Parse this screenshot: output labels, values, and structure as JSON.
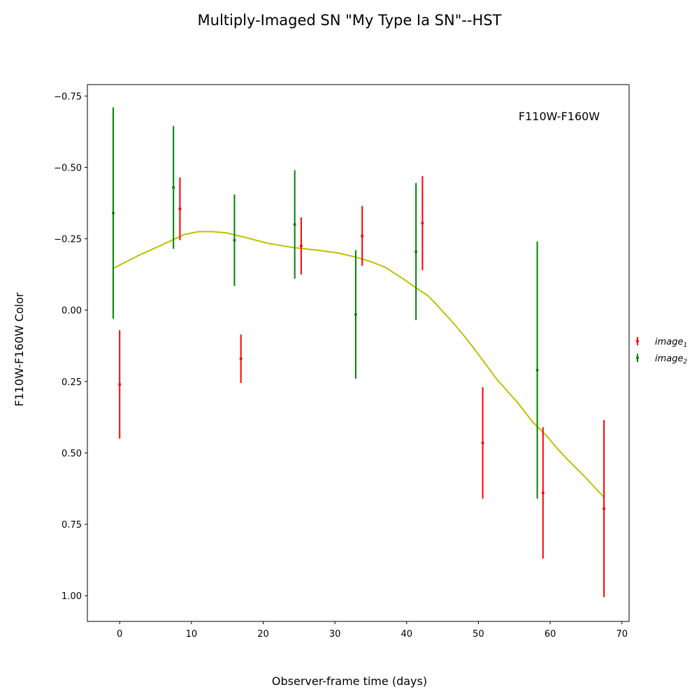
{
  "chart_data": {
    "type": "scatter",
    "title": "Multiply-Imaged SN \"My Type Ia SN\"--HST",
    "xlabel": "Observer-frame time (days)",
    "ylabel": "F110W-F160W Color",
    "annotation": "F110W-F160W",
    "xlim": [
      -4.5,
      71
    ],
    "ylim": [
      1.09,
      -0.79
    ],
    "y_inverted": true,
    "x_ticks": [
      0,
      10,
      20,
      30,
      40,
      50,
      60,
      70
    ],
    "y_ticks": [
      -0.75,
      -0.5,
      -0.25,
      0.0,
      0.25,
      0.5,
      0.75,
      1.0
    ],
    "y_tick_labels": [
      "−0.75",
      "−0.50",
      "−0.25",
      "0.00",
      "0.25",
      "0.50",
      "0.75",
      "1.00"
    ],
    "grid": false,
    "legend_position": "right",
    "series": [
      {
        "name": "image",
        "name_sub": "1",
        "color": "#ff0000",
        "x": [
          0.0,
          8.4,
          16.9,
          25.3,
          33.8,
          42.2,
          50.6,
          59.0,
          67.5
        ],
        "y": [
          0.26,
          -0.355,
          0.17,
          -0.225,
          -0.26,
          -0.305,
          0.465,
          0.64,
          0.695
        ],
        "yerr": [
          0.19,
          0.11,
          0.085,
          0.1,
          0.105,
          0.165,
          0.195,
          0.23,
          0.31
        ]
      },
      {
        "name": "image",
        "name_sub": "2",
        "color": "#008000",
        "x": [
          -0.9,
          7.5,
          16.0,
          24.4,
          32.9,
          41.3,
          58.2
        ],
        "y": [
          -0.34,
          -0.43,
          -0.245,
          -0.3,
          0.015,
          -0.205,
          0.21
        ],
        "yerr": [
          0.37,
          0.215,
          0.16,
          0.19,
          0.225,
          0.24,
          0.45
        ]
      }
    ],
    "model": {
      "color": "#bfbf00",
      "x": [
        -1.0,
        2.5,
        6.0,
        9.0,
        11.0,
        13.0,
        15.0,
        17.5,
        20.5,
        24.0,
        27.5,
        30.5,
        33.0,
        35.0,
        37.0,
        39.5,
        41.5,
        43.0,
        44.5,
        46.5,
        48.5,
        50.0,
        52.5,
        55.5,
        57.5,
        59.5,
        61.0,
        62.5,
        64.5,
        66.0,
        67.5
      ],
      "y": [
        -0.145,
        -0.19,
        -0.23,
        -0.265,
        -0.275,
        -0.275,
        -0.27,
        -0.255,
        -0.235,
        -0.22,
        -0.21,
        -0.2,
        -0.185,
        -0.17,
        -0.15,
        -0.11,
        -0.075,
        -0.05,
        -0.01,
        0.045,
        0.105,
        0.155,
        0.24,
        0.325,
        0.39,
        0.44,
        0.485,
        0.525,
        0.575,
        0.615,
        0.655
      ]
    }
  }
}
